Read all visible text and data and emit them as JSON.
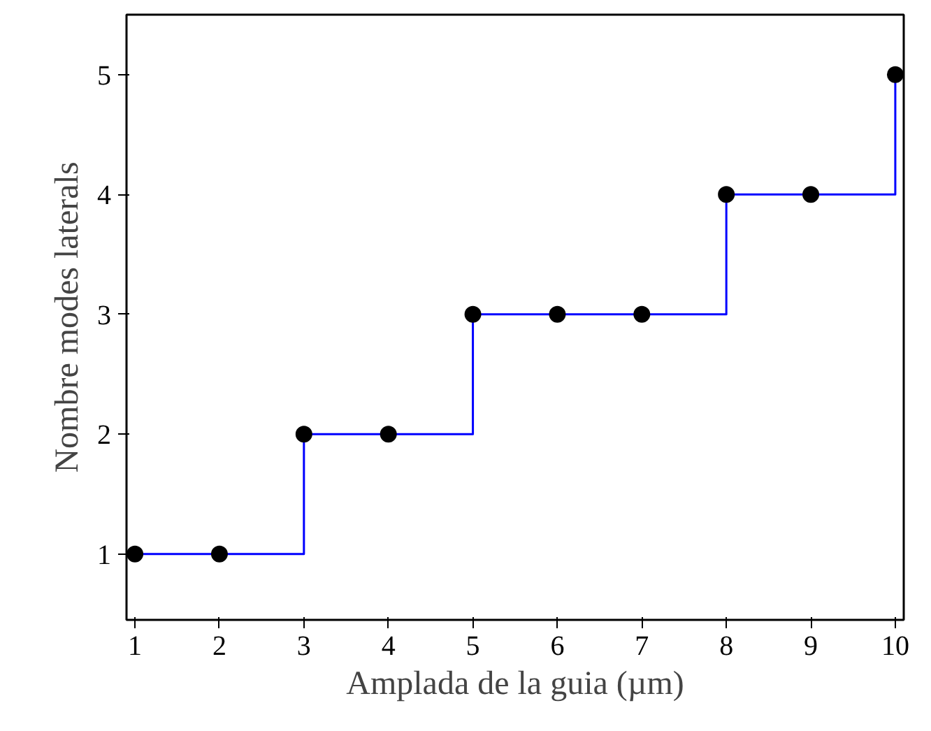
{
  "chart_data": {
    "type": "step",
    "xlabel": "Amplada de la guia (µm)",
    "ylabel": "Nombre modes laterals",
    "x": [
      1,
      2,
      3,
      4,
      5,
      6,
      7,
      8,
      9,
      10
    ],
    "series": [
      {
        "color": "#0000ff",
        "values": [
          1,
          1,
          2,
          2,
          3,
          3,
          3,
          4,
          4,
          5
        ]
      }
    ],
    "xlim": [
      0.9,
      10.1
    ],
    "ylim": [
      0.45,
      5.5
    ],
    "xticks": [
      1,
      2,
      3,
      4,
      5,
      6,
      7,
      8,
      9,
      10
    ],
    "yticks": [
      1,
      2,
      3,
      4,
      5
    ],
    "grid": false,
    "marker": "circle",
    "line_style": "solid"
  }
}
